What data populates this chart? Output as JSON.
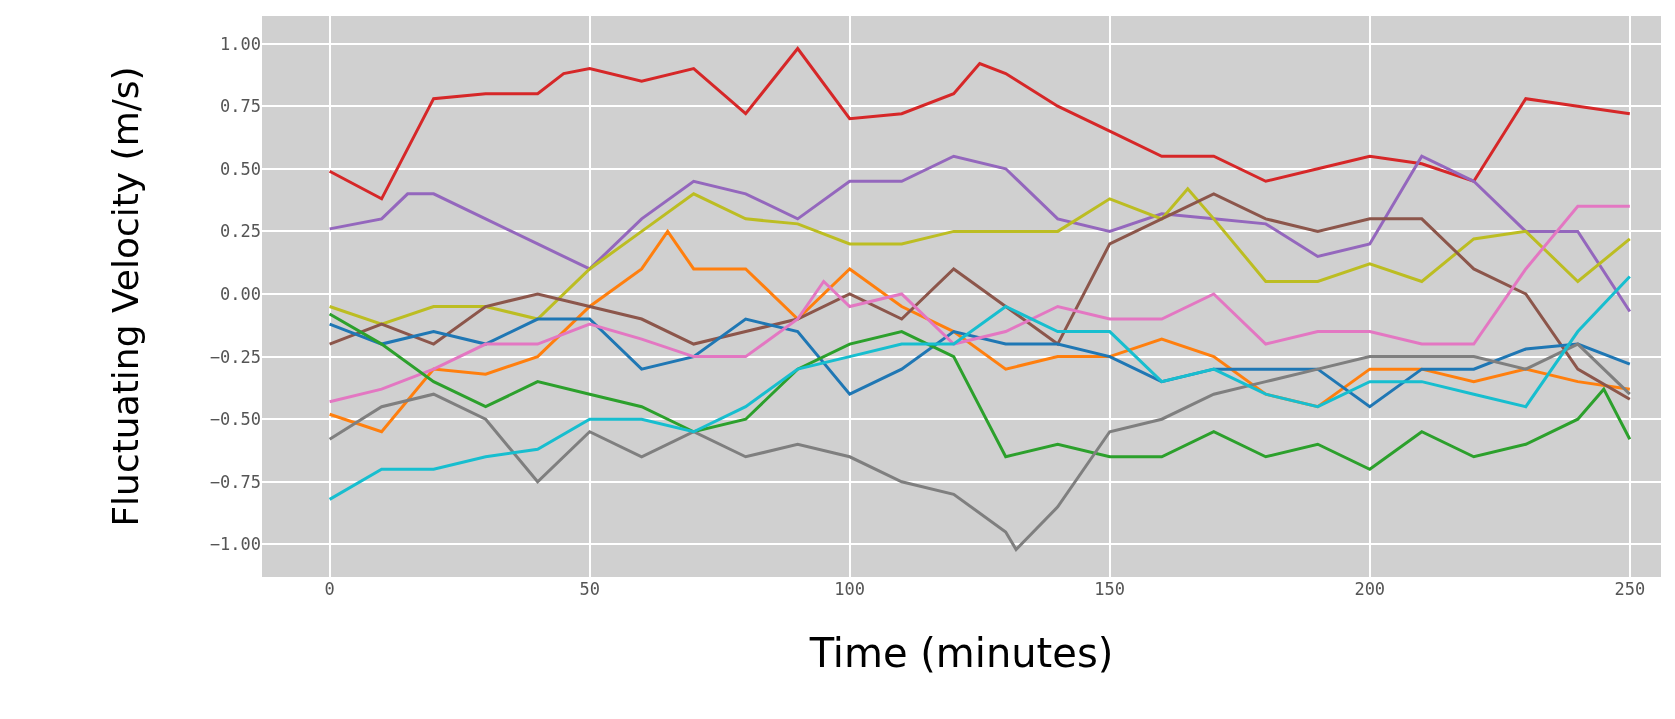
{
  "chart_data": {
    "type": "line",
    "xlabel": "Time (minutes)",
    "ylabel": "Fluctuating Velocity (m/s)",
    "xlim": [
      -13,
      256
    ],
    "ylim": [
      -1.13,
      1.11
    ],
    "xticks": [
      0,
      50,
      100,
      150,
      200,
      250
    ],
    "yticks": [
      {
        "value": -1,
        "label": "−1.00"
      },
      {
        "value": -0.75,
        "label": "−0.75"
      },
      {
        "value": -0.5,
        "label": "−0.50"
      },
      {
        "value": -0.25,
        "label": "−0.25"
      },
      {
        "value": 0,
        "label": "0.00"
      },
      {
        "value": 0.25,
        "label": "0.25"
      },
      {
        "value": 0.5,
        "label": "0.50"
      },
      {
        "value": 0.75,
        "label": "0.75"
      },
      {
        "value": 1,
        "label": "1.00"
      }
    ],
    "grid": true,
    "marker": "none",
    "line_style": "solid",
    "series": [
      {
        "color": "#d62728",
        "x": [
          0,
          10,
          20,
          30,
          40,
          45,
          50,
          60,
          70,
          80,
          90,
          100,
          110,
          120,
          125,
          130,
          140,
          150,
          160,
          170,
          180,
          190,
          200,
          210,
          220,
          230,
          240,
          250
        ],
        "values": [
          0.49,
          0.38,
          0.78,
          0.8,
          0.8,
          0.88,
          0.9,
          0.85,
          0.9,
          0.72,
          0.98,
          0.7,
          0.72,
          0.8,
          0.92,
          0.88,
          0.75,
          0.65,
          0.55,
          0.55,
          0.45,
          0.5,
          0.55,
          0.52,
          0.45,
          0.78,
          0.75,
          0.72
        ]
      },
      {
        "color": "#9467bd",
        "x": [
          0,
          10,
          15,
          20,
          30,
          40,
          50,
          60,
          70,
          80,
          90,
          100,
          110,
          120,
          130,
          140,
          150,
          160,
          170,
          180,
          190,
          200,
          210,
          220,
          230,
          240,
          250
        ],
        "values": [
          0.26,
          0.3,
          0.4,
          0.4,
          0.3,
          0.2,
          0.1,
          0.3,
          0.45,
          0.4,
          0.3,
          0.45,
          0.45,
          0.55,
          0.5,
          0.3,
          0.25,
          0.32,
          0.3,
          0.28,
          0.15,
          0.2,
          0.55,
          0.45,
          0.25,
          0.25,
          -0.07
        ]
      },
      {
        "color": "#bcbd22",
        "x": [
          0,
          10,
          20,
          30,
          40,
          50,
          60,
          70,
          80,
          90,
          100,
          110,
          120,
          130,
          140,
          150,
          160,
          165,
          170,
          180,
          190,
          200,
          210,
          220,
          230,
          240,
          250
        ],
        "values": [
          -0.05,
          -0.12,
          -0.05,
          -0.05,
          -0.1,
          0.1,
          0.25,
          0.4,
          0.3,
          0.28,
          0.2,
          0.2,
          0.25,
          0.25,
          0.25,
          0.38,
          0.3,
          0.42,
          0.3,
          0.05,
          0.05,
          0.12,
          0.05,
          0.22,
          0.25,
          0.05,
          0.22
        ]
      },
      {
        "color": "#ff7f0e",
        "x": [
          0,
          10,
          20,
          30,
          40,
          50,
          60,
          65,
          70,
          80,
          90,
          100,
          110,
          120,
          130,
          140,
          150,
          160,
          170,
          180,
          190,
          200,
          210,
          220,
          230,
          240,
          250
        ],
        "values": [
          -0.48,
          -0.55,
          -0.3,
          -0.32,
          -0.25,
          -0.05,
          0.1,
          0.25,
          0.1,
          0.1,
          -0.1,
          0.1,
          -0.05,
          -0.15,
          -0.3,
          -0.25,
          -0.25,
          -0.18,
          -0.25,
          -0.4,
          -0.45,
          -0.3,
          -0.3,
          -0.35,
          -0.3,
          -0.35,
          -0.38
        ]
      },
      {
        "color": "#8c564b",
        "x": [
          0,
          10,
          20,
          30,
          40,
          50,
          60,
          70,
          80,
          90,
          100,
          110,
          120,
          130,
          140,
          150,
          160,
          170,
          180,
          190,
          200,
          210,
          220,
          230,
          240,
          250
        ],
        "values": [
          -0.2,
          -0.12,
          -0.2,
          -0.05,
          0.0,
          -0.05,
          -0.1,
          -0.2,
          -0.15,
          -0.1,
          0.0,
          -0.1,
          0.1,
          -0.05,
          -0.2,
          0.2,
          0.3,
          0.4,
          0.3,
          0.25,
          0.3,
          0.3,
          0.1,
          0.0,
          -0.3,
          -0.42
        ]
      },
      {
        "color": "#1f77b4",
        "x": [
          0,
          10,
          20,
          30,
          40,
          50,
          60,
          70,
          80,
          90,
          100,
          110,
          120,
          130,
          140,
          150,
          160,
          170,
          180,
          190,
          200,
          210,
          220,
          230,
          240,
          250
        ],
        "values": [
          -0.12,
          -0.2,
          -0.15,
          -0.2,
          -0.1,
          -0.1,
          -0.3,
          -0.25,
          -0.1,
          -0.15,
          -0.4,
          -0.3,
          -0.15,
          -0.2,
          -0.2,
          -0.25,
          -0.35,
          -0.3,
          -0.3,
          -0.3,
          -0.45,
          -0.3,
          -0.3,
          -0.22,
          -0.2,
          -0.28
        ]
      },
      {
        "color": "#e377c2",
        "x": [
          0,
          10,
          20,
          30,
          40,
          50,
          60,
          70,
          80,
          90,
          95,
          100,
          110,
          120,
          130,
          140,
          150,
          160,
          170,
          180,
          190,
          200,
          210,
          220,
          230,
          240,
          250
        ],
        "values": [
          -0.43,
          -0.38,
          -0.3,
          -0.2,
          -0.2,
          -0.12,
          -0.18,
          -0.25,
          -0.25,
          -0.1,
          0.05,
          -0.05,
          0.0,
          -0.2,
          -0.15,
          -0.05,
          -0.1,
          -0.1,
          0.0,
          -0.2,
          -0.15,
          -0.15,
          -0.2,
          -0.2,
          0.1,
          0.35,
          0.35
        ]
      },
      {
        "color": "#2ca02c",
        "x": [
          0,
          10,
          20,
          30,
          40,
          50,
          60,
          70,
          80,
          90,
          100,
          110,
          120,
          130,
          140,
          150,
          160,
          170,
          180,
          190,
          200,
          210,
          220,
          230,
          240,
          245,
          250
        ],
        "values": [
          -0.08,
          -0.2,
          -0.35,
          -0.45,
          -0.35,
          -0.4,
          -0.45,
          -0.55,
          -0.5,
          -0.3,
          -0.2,
          -0.15,
          -0.25,
          -0.65,
          -0.6,
          -0.65,
          -0.65,
          -0.55,
          -0.65,
          -0.6,
          -0.7,
          -0.55,
          -0.65,
          -0.6,
          -0.5,
          -0.38,
          -0.58
        ]
      },
      {
        "color": "#7f7f7f",
        "x": [
          0,
          10,
          20,
          30,
          40,
          50,
          60,
          70,
          80,
          90,
          100,
          110,
          120,
          130,
          132,
          140,
          150,
          160,
          170,
          180,
          190,
          200,
          210,
          220,
          230,
          240,
          250
        ],
        "values": [
          -0.58,
          -0.45,
          -0.4,
          -0.5,
          -0.75,
          -0.55,
          -0.65,
          -0.55,
          -0.65,
          -0.6,
          -0.65,
          -0.75,
          -0.8,
          -0.95,
          -1.02,
          -0.85,
          -0.55,
          -0.5,
          -0.4,
          -0.35,
          -0.3,
          -0.25,
          -0.25,
          -0.25,
          -0.3,
          -0.2,
          -0.4
        ]
      },
      {
        "color": "#17becf",
        "x": [
          0,
          10,
          20,
          30,
          40,
          50,
          60,
          70,
          80,
          90,
          100,
          110,
          120,
          130,
          140,
          150,
          160,
          170,
          180,
          190,
          200,
          210,
          220,
          230,
          240,
          250
        ],
        "values": [
          -0.82,
          -0.7,
          -0.7,
          -0.65,
          -0.62,
          -0.5,
          -0.5,
          -0.55,
          -0.45,
          -0.3,
          -0.25,
          -0.2,
          -0.2,
          -0.05,
          -0.15,
          -0.15,
          -0.35,
          -0.3,
          -0.4,
          -0.45,
          -0.35,
          -0.35,
          -0.4,
          -0.45,
          -0.15,
          0.07
        ]
      }
    ]
  }
}
